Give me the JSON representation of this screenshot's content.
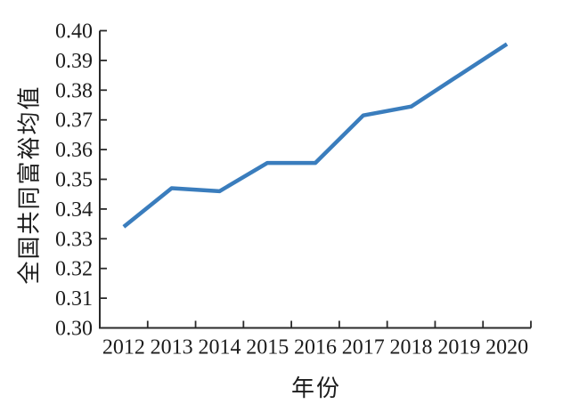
{
  "chart_data": {
    "type": "line",
    "title": "",
    "xlabel": "年份",
    "ylabel": "全国共同富裕均值",
    "categories": [
      "2012",
      "2013",
      "2014",
      "2015",
      "2016",
      "2017",
      "2018",
      "2019",
      "2020"
    ],
    "values": [
      0.334,
      0.347,
      0.346,
      0.3555,
      0.3555,
      0.3715,
      0.3745,
      0.385,
      0.3955
    ],
    "ylim": [
      0.3,
      0.4
    ],
    "yticks": [
      "0.30",
      "0.31",
      "0.32",
      "0.33",
      "0.34",
      "0.35",
      "0.36",
      "0.37",
      "0.38",
      "0.39",
      "0.40"
    ],
    "grid": false,
    "legend": "none",
    "line_color": "#3a7dbd",
    "axis_color": "#2a2a2a",
    "text_color": "#1c1c1c"
  }
}
